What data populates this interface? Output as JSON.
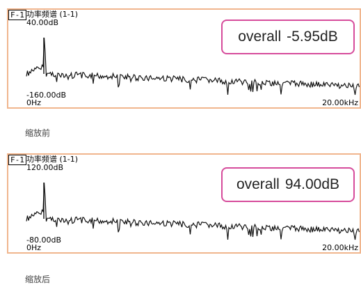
{
  "panels": [
    {
      "tag": "F-1",
      "title": "功率频谱 (1-1)",
      "y_max": "40.00dB",
      "y_min": "-160.00dB",
      "x_min": "0Hz",
      "x_max": "20.00kHz",
      "overall_label": "overall",
      "overall_value": "-5.95dB",
      "caption": "缩放前"
    },
    {
      "tag": "F-1",
      "title": "功率频谱 (1-1)",
      "y_max": "120.00dB",
      "y_min": "-80.00dB",
      "x_min": "0Hz",
      "x_max": "20.00kHz",
      "overall_label": "overall",
      "overall_value": "94.00dB",
      "caption": "缩放后"
    }
  ],
  "colors": {
    "frame": "#f0b58d",
    "highlight": "#d64b9b",
    "trace": "#111111"
  }
}
